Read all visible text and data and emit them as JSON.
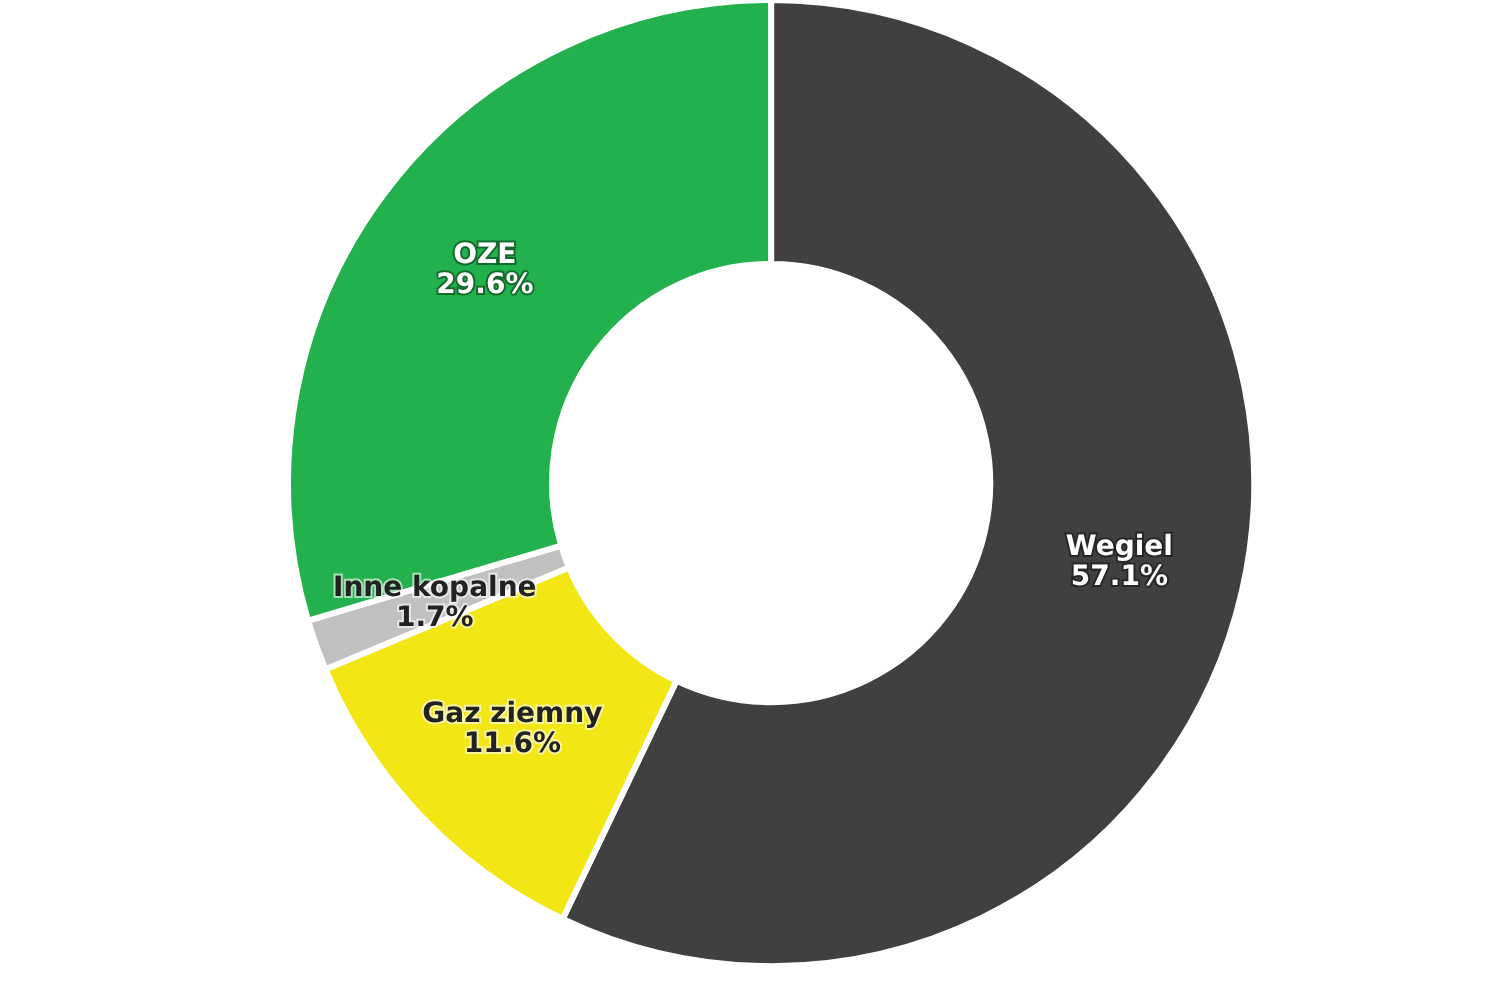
{
  "chart_data": {
    "type": "donut",
    "categories": [
      "Wegiel",
      "Gaz ziemny",
      "Inne kopalne",
      "OZE"
    ],
    "values": [
      57.1,
      11.6,
      1.7,
      29.6
    ],
    "colors": [
      "#404040",
      "#f2e614",
      "#c0c0c0",
      "#22b14c"
    ],
    "value_labels": [
      "57.1%",
      "11.6%",
      "1.7%",
      "29.6%"
    ],
    "legend": false
  }
}
